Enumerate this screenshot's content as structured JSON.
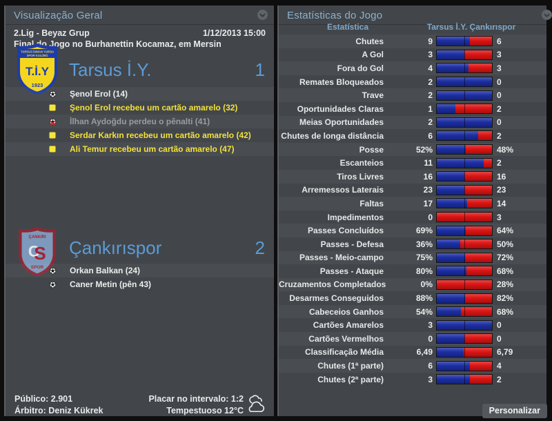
{
  "left_panel": {
    "title": "Visualização Geral",
    "competition": "2.Lig - Beyaz Grup",
    "datetime": "1/12/2013 15:00",
    "venue_line": "Final do Jogo no Burhanettin Kocamaz, em Mersin",
    "home": {
      "name": "Tarsus İ.Y.",
      "score": "1",
      "badge": {
        "top_line1": "TARSUS İDMAN YURDU",
        "top_line2": "SPOR KULÜBÜ",
        "monogram": "T.İ.Y",
        "year": "1923"
      },
      "events": [
        {
          "type": "goal",
          "style": "normal",
          "text": "Şenol Erol (14)"
        },
        {
          "type": "yellow-card",
          "style": "yellow",
          "text": "Şenol Erol recebeu um cartão amarelo (32)"
        },
        {
          "type": "missed-penalty",
          "style": "muted",
          "text": "İlhan Aydoğdu perdeu o pênalti (41)"
        },
        {
          "type": "yellow-card",
          "style": "yellow",
          "text": "Serdar Karkın recebeu um cartão amarelo (42)"
        },
        {
          "type": "yellow-card",
          "style": "yellow",
          "text": "Ali Temur recebeu um cartão amarelo (47)"
        }
      ]
    },
    "away": {
      "name": "Çankırıspor",
      "score": "2",
      "badge": {
        "top": "ÇANKIRI",
        "monogram_c": "C",
        "monogram_s": "S",
        "bottom": "SPOR"
      },
      "events": [
        {
          "type": "goal",
          "style": "normal",
          "text": "Orkan Balkan (24)"
        },
        {
          "type": "goal",
          "style": "normal",
          "text": "Caner Metin (pên 43)"
        }
      ]
    },
    "footer": {
      "attendance_line": "Público: 2.901",
      "referee_line": "Árbitro: Deniz Kükrek",
      "halftime_line": "Placar no intervalo: 1:2",
      "weather_line": "Tempestuoso 12°C"
    }
  },
  "right_panel": {
    "title": "Estatísticas do Jogo",
    "col_stat": "Estatística",
    "col_teams": "Tarsus İ.Y. Çankırıspor",
    "personalize_label": "Personalizar",
    "colors": {
      "home_bar": "#1c2ea4",
      "away_bar": "#dd1414"
    },
    "stats": [
      {
        "label": "Chutes",
        "home": "9",
        "away": "6"
      },
      {
        "label": "A Gol",
        "home": "3",
        "away": "3"
      },
      {
        "label": "Fora do Gol",
        "home": "4",
        "away": "3"
      },
      {
        "label": "Remates Bloqueados",
        "home": "2",
        "away": "0"
      },
      {
        "label": "Trave",
        "home": "2",
        "away": "0"
      },
      {
        "label": "Oportunidades Claras",
        "home": "1",
        "away": "2"
      },
      {
        "label": "Meias Oportunidades",
        "home": "2",
        "away": "0"
      },
      {
        "label": "Chutes de longa distância",
        "home": "6",
        "away": "2"
      },
      {
        "label": "Posse",
        "home": "52%",
        "away": "48%"
      },
      {
        "label": "Escanteios",
        "home": "11",
        "away": "2"
      },
      {
        "label": "Tiros Livres",
        "home": "16",
        "away": "16"
      },
      {
        "label": "Arremessos Laterais",
        "home": "23",
        "away": "23"
      },
      {
        "label": "Faltas",
        "home": "17",
        "away": "14"
      },
      {
        "label": "Impedimentos",
        "home": "0",
        "away": "3"
      },
      {
        "label": "Passes Concluídos",
        "home": "69%",
        "away": "64%"
      },
      {
        "label": "Passes - Defesa",
        "home": "36%",
        "away": "50%"
      },
      {
        "label": "Passes - Meio-campo",
        "home": "75%",
        "away": "72%"
      },
      {
        "label": "Passes - Ataque",
        "home": "80%",
        "away": "68%"
      },
      {
        "label": "Cruzamentos Completados",
        "home": "0%",
        "away": "28%"
      },
      {
        "label": "Desarmes Conseguidos",
        "home": "88%",
        "away": "82%"
      },
      {
        "label": "Cabeceios Ganhos",
        "home": "54%",
        "away": "68%"
      },
      {
        "label": "Cartões Amarelos",
        "home": "3",
        "away": "0"
      },
      {
        "label": "Cartões Vermelhos",
        "home": "0",
        "away": "0"
      },
      {
        "label": "Classificação Média",
        "home": "6,49",
        "away": "6,79"
      },
      {
        "label": "Chutes (1ª parte)",
        "home": "6",
        "away": "4"
      },
      {
        "label": "Chutes (2ª parte)",
        "home": "3",
        "away": "2"
      }
    ]
  }
}
